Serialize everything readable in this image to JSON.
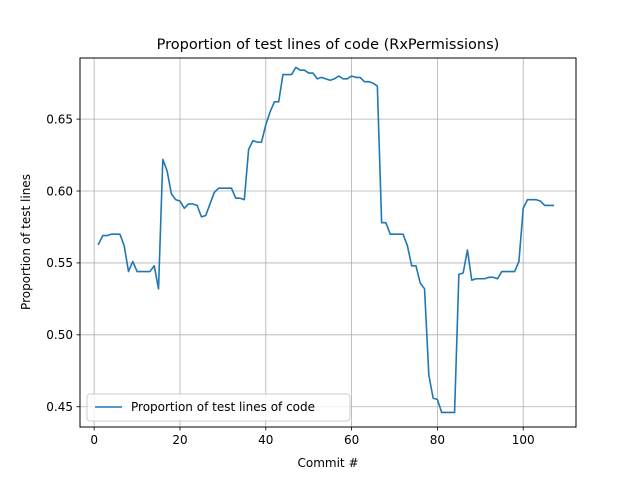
{
  "chart_data": {
    "type": "line",
    "title": "Proportion of test lines of code (RxPermissions)",
    "xlabel": "Commit #",
    "ylabel": "Proportion of test lines",
    "xlim": [
      -3.3,
      112.3
    ],
    "ylim": [
      0.4359,
      0.6925
    ],
    "xticks": [
      0,
      20,
      40,
      60,
      80,
      100
    ],
    "yticks": [
      0.45,
      0.5,
      0.55,
      0.6,
      0.65
    ],
    "ytick_labels": [
      "0.45",
      "0.50",
      "0.55",
      "0.60",
      "0.65"
    ],
    "grid": true,
    "legend_position": "lower-left",
    "line_color": "#1f77b4",
    "series": [
      {
        "name": "Proportion of test lines of code",
        "x": [
          1,
          2,
          3,
          4,
          5,
          6,
          7,
          8,
          9,
          10,
          11,
          12,
          13,
          14,
          15,
          16,
          17,
          18,
          19,
          20,
          21,
          22,
          23,
          24,
          25,
          26,
          27,
          28,
          29,
          30,
          31,
          32,
          33,
          34,
          35,
          36,
          37,
          38,
          39,
          40,
          41,
          42,
          43,
          44,
          45,
          46,
          47,
          48,
          49,
          50,
          51,
          52,
          53,
          54,
          55,
          56,
          57,
          58,
          59,
          60,
          61,
          62,
          63,
          64,
          65,
          66,
          67,
          68,
          69,
          70,
          71,
          72,
          73,
          74,
          75,
          76,
          77,
          78,
          79,
          80,
          81,
          82,
          83,
          84,
          85,
          86,
          87,
          88,
          89,
          90,
          91,
          92,
          93,
          94,
          95,
          96,
          97,
          98,
          99,
          100,
          101,
          102,
          103,
          104,
          105,
          106,
          107
        ],
        "values": [
          0.563,
          0.569,
          0.569,
          0.57,
          0.57,
          0.57,
          0.562,
          0.544,
          0.551,
          0.544,
          0.544,
          0.544,
          0.544,
          0.548,
          0.532,
          0.622,
          0.614,
          0.598,
          0.594,
          0.593,
          0.588,
          0.591,
          0.591,
          0.59,
          0.582,
          0.583,
          0.591,
          0.599,
          0.602,
          0.602,
          0.602,
          0.602,
          0.595,
          0.595,
          0.594,
          0.629,
          0.635,
          0.634,
          0.634,
          0.646,
          0.655,
          0.662,
          0.662,
          0.681,
          0.681,
          0.681,
          0.686,
          0.684,
          0.684,
          0.682,
          0.682,
          0.678,
          0.679,
          0.678,
          0.677,
          0.678,
          0.68,
          0.678,
          0.678,
          0.68,
          0.679,
          0.679,
          0.676,
          0.676,
          0.675,
          0.673,
          0.578,
          0.578,
          0.57,
          0.57,
          0.57,
          0.57,
          0.562,
          0.548,
          0.548,
          0.536,
          0.532,
          0.472,
          0.456,
          0.455,
          0.446,
          0.446,
          0.446,
          0.446,
          0.542,
          0.543,
          0.559,
          0.538,
          0.539,
          0.539,
          0.539,
          0.54,
          0.54,
          0.539,
          0.544,
          0.544,
          0.544,
          0.544,
          0.551,
          0.588,
          0.594,
          0.594,
          0.594,
          0.593,
          0.59,
          0.59,
          0.59
        ]
      }
    ]
  }
}
